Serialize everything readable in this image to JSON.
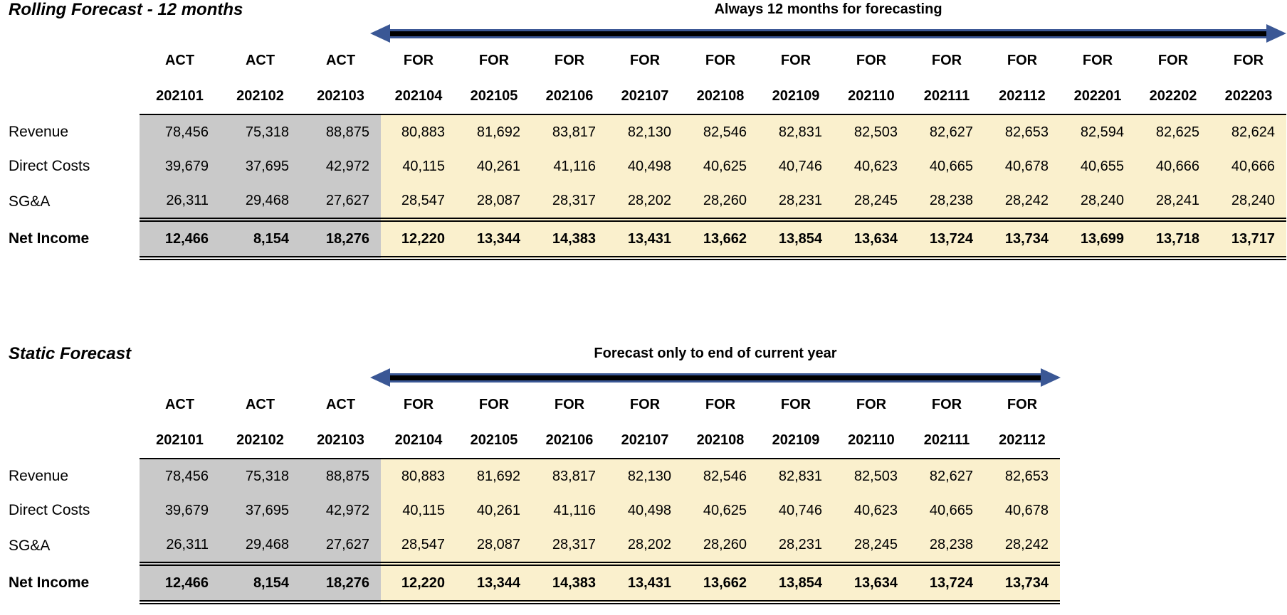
{
  "colors": {
    "actual_bg": "#C9C9C9",
    "forecast_bg": "#FAF0CD",
    "arrow_blue": "#3A5795",
    "text": "#000000"
  },
  "tables": [
    {
      "name": "rolling-forecast",
      "title": "Rolling Forecast - 12 months",
      "arrow_label": "Always 12 months for forecasting",
      "columns": [
        {
          "type": "ACT",
          "period": "202101"
        },
        {
          "type": "ACT",
          "period": "202102"
        },
        {
          "type": "ACT",
          "period": "202103"
        },
        {
          "type": "FOR",
          "period": "202104"
        },
        {
          "type": "FOR",
          "period": "202105"
        },
        {
          "type": "FOR",
          "period": "202106"
        },
        {
          "type": "FOR",
          "period": "202107"
        },
        {
          "type": "FOR",
          "period": "202108"
        },
        {
          "type": "FOR",
          "period": "202109"
        },
        {
          "type": "FOR",
          "period": "202110"
        },
        {
          "type": "FOR",
          "period": "202111"
        },
        {
          "type": "FOR",
          "period": "202112"
        },
        {
          "type": "FOR",
          "period": "202201"
        },
        {
          "type": "FOR",
          "period": "202202"
        },
        {
          "type": "FOR",
          "period": "202203"
        }
      ],
      "rows": [
        {
          "label": "Revenue",
          "emphasis": false,
          "values": [
            "78,456",
            "75,318",
            "88,875",
            "80,883",
            "81,692",
            "83,817",
            "82,130",
            "82,546",
            "82,831",
            "82,503",
            "82,627",
            "82,653",
            "82,594",
            "82,625",
            "82,624"
          ]
        },
        {
          "label": "Direct Costs",
          "emphasis": false,
          "values": [
            "39,679",
            "37,695",
            "42,972",
            "40,115",
            "40,261",
            "41,116",
            "40,498",
            "40,625",
            "40,746",
            "40,623",
            "40,665",
            "40,678",
            "40,655",
            "40,666",
            "40,666"
          ]
        },
        {
          "label": "SG&A",
          "emphasis": false,
          "values": [
            "26,311",
            "29,468",
            "27,627",
            "28,547",
            "28,087",
            "28,317",
            "28,202",
            "28,260",
            "28,231",
            "28,245",
            "28,238",
            "28,242",
            "28,240",
            "28,241",
            "28,240"
          ]
        },
        {
          "label": "Net Income",
          "emphasis": true,
          "values": [
            "12,466",
            "8,154",
            "18,276",
            "12,220",
            "13,344",
            "14,383",
            "13,431",
            "13,662",
            "13,854",
            "13,634",
            "13,724",
            "13,734",
            "13,699",
            "13,718",
            "13,717"
          ]
        }
      ]
    },
    {
      "name": "static-forecast",
      "title": "Static Forecast",
      "arrow_label": "Forecast only to end of current year",
      "columns": [
        {
          "type": "ACT",
          "period": "202101"
        },
        {
          "type": "ACT",
          "period": "202102"
        },
        {
          "type": "ACT",
          "period": "202103"
        },
        {
          "type": "FOR",
          "period": "202104"
        },
        {
          "type": "FOR",
          "period": "202105"
        },
        {
          "type": "FOR",
          "period": "202106"
        },
        {
          "type": "FOR",
          "period": "202107"
        },
        {
          "type": "FOR",
          "period": "202108"
        },
        {
          "type": "FOR",
          "period": "202109"
        },
        {
          "type": "FOR",
          "period": "202110"
        },
        {
          "type": "FOR",
          "period": "202111"
        },
        {
          "type": "FOR",
          "period": "202112"
        }
      ],
      "rows": [
        {
          "label": "Revenue",
          "emphasis": false,
          "values": [
            "78,456",
            "75,318",
            "88,875",
            "80,883",
            "81,692",
            "83,817",
            "82,130",
            "82,546",
            "82,831",
            "82,503",
            "82,627",
            "82,653"
          ]
        },
        {
          "label": "Direct Costs",
          "emphasis": false,
          "values": [
            "39,679",
            "37,695",
            "42,972",
            "40,115",
            "40,261",
            "41,116",
            "40,498",
            "40,625",
            "40,746",
            "40,623",
            "40,665",
            "40,678"
          ]
        },
        {
          "label": "SG&A",
          "emphasis": false,
          "values": [
            "26,311",
            "29,468",
            "27,627",
            "28,547",
            "28,087",
            "28,317",
            "28,202",
            "28,260",
            "28,231",
            "28,245",
            "28,238",
            "28,242"
          ]
        },
        {
          "label": "Net Income",
          "emphasis": true,
          "values": [
            "12,466",
            "8,154",
            "18,276",
            "12,220",
            "13,344",
            "14,383",
            "13,431",
            "13,662",
            "13,854",
            "13,634",
            "13,724",
            "13,734"
          ]
        }
      ]
    }
  ],
  "layout_labels": {
    "label_col_width": 196,
    "act_col_width": 113,
    "for_col_width": 106
  }
}
